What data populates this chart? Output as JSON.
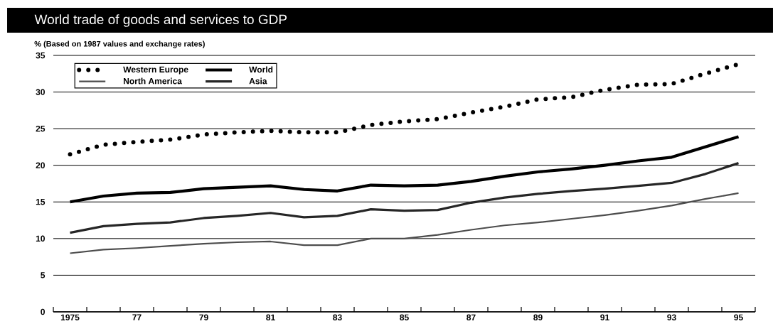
{
  "chart_data": {
    "type": "line",
    "title": "World trade of goods and services to GDP",
    "ylabel": "% (Based on 1987 values and exchange rates)",
    "x": [
      1975,
      1976,
      1977,
      1978,
      1979,
      1980,
      1981,
      1982,
      1983,
      1984,
      1985,
      1986,
      1987,
      1988,
      1989,
      1990,
      1991,
      1992,
      1993,
      1994,
      1995
    ],
    "series": [
      {
        "name": "Western Europe",
        "color": "#000000",
        "line_style": "dotted",
        "values": [
          21.5,
          22.8,
          23.2,
          23.5,
          24.2,
          24.5,
          24.7,
          24.5,
          24.5,
          25.5,
          26,
          26.3,
          27.2,
          28,
          29,
          29.3,
          30.3,
          31,
          31.1,
          32.5,
          33.8
        ]
      },
      {
        "name": "World",
        "color": "#000000",
        "line_style": "solid",
        "values": [
          15,
          15.8,
          16.2,
          16.3,
          16.8,
          17,
          17.2,
          16.7,
          16.5,
          17.3,
          17.2,
          17.3,
          17.8,
          18.5,
          19.1,
          19.5,
          20,
          20.6,
          21.1,
          22.5,
          23.9
        ]
      },
      {
        "name": "North America",
        "color": "#4d4d4d",
        "line_style": "solid",
        "values": [
          8,
          8.5,
          8.7,
          9,
          9.3,
          9.5,
          9.6,
          9.1,
          9.1,
          10,
          10,
          10.5,
          11.2,
          11.8,
          12.2,
          12.7,
          13.2,
          13.8,
          14.5,
          15.4,
          16.2
        ]
      },
      {
        "name": "Asia",
        "color": "#262626",
        "line_style": "solid",
        "values": [
          10.8,
          11.7,
          12,
          12.2,
          12.8,
          13.1,
          13.5,
          12.9,
          13.1,
          14,
          13.8,
          13.9,
          14.9,
          15.6,
          16.1,
          16.5,
          16.8,
          17.2,
          17.6,
          18.8,
          20.3
        ]
      }
    ],
    "xlim": [
      1974.5,
      1995.5
    ],
    "xticks": [
      {
        "value": 1975,
        "label": "1975"
      },
      {
        "value": 1977,
        "label": "77"
      },
      {
        "value": 1979,
        "label": "79"
      },
      {
        "value": 1981,
        "label": "81"
      },
      {
        "value": 1983,
        "label": "83"
      },
      {
        "value": 1985,
        "label": "85"
      },
      {
        "value": 1987,
        "label": "87"
      },
      {
        "value": 1989,
        "label": "89"
      },
      {
        "value": 1991,
        "label": "91"
      },
      {
        "value": 1993,
        "label": "93"
      },
      {
        "value": 1995,
        "label": "95"
      },
      {
        "value": 1974.5,
        "label": null
      },
      {
        "value": 1975.5,
        "label": null
      },
      {
        "value": 1976.5,
        "label": null
      },
      {
        "value": 1977.5,
        "label": null
      },
      {
        "value": 1978.5,
        "label": null
      },
      {
        "value": 1979.5,
        "label": null
      },
      {
        "value": 1980.5,
        "label": null
      },
      {
        "value": 1981.5,
        "label": null
      },
      {
        "value": 1982.5,
        "label": null
      },
      {
        "value": 1983.5,
        "label": null
      },
      {
        "value": 1984.5,
        "label": null
      },
      {
        "value": 1985.5,
        "label": null
      },
      {
        "value": 1986.5,
        "label": null
      },
      {
        "value": 1987.5,
        "label": null
      },
      {
        "value": 1988.5,
        "label": null
      },
      {
        "value": 1989.5,
        "label": null
      },
      {
        "value": 1990.5,
        "label": null
      },
      {
        "value": 1991.5,
        "label": null
      },
      {
        "value": 1992.5,
        "label": null
      },
      {
        "value": 1993.5,
        "label": null
      },
      {
        "value": 1994.5,
        "label": null
      },
      {
        "value": 1995.5,
        "label": null
      }
    ],
    "ylim": [
      0,
      35
    ],
    "yticks": [
      0,
      5,
      10,
      15,
      20,
      25,
      30,
      35
    ],
    "grid": "y",
    "legend": "top left"
  }
}
